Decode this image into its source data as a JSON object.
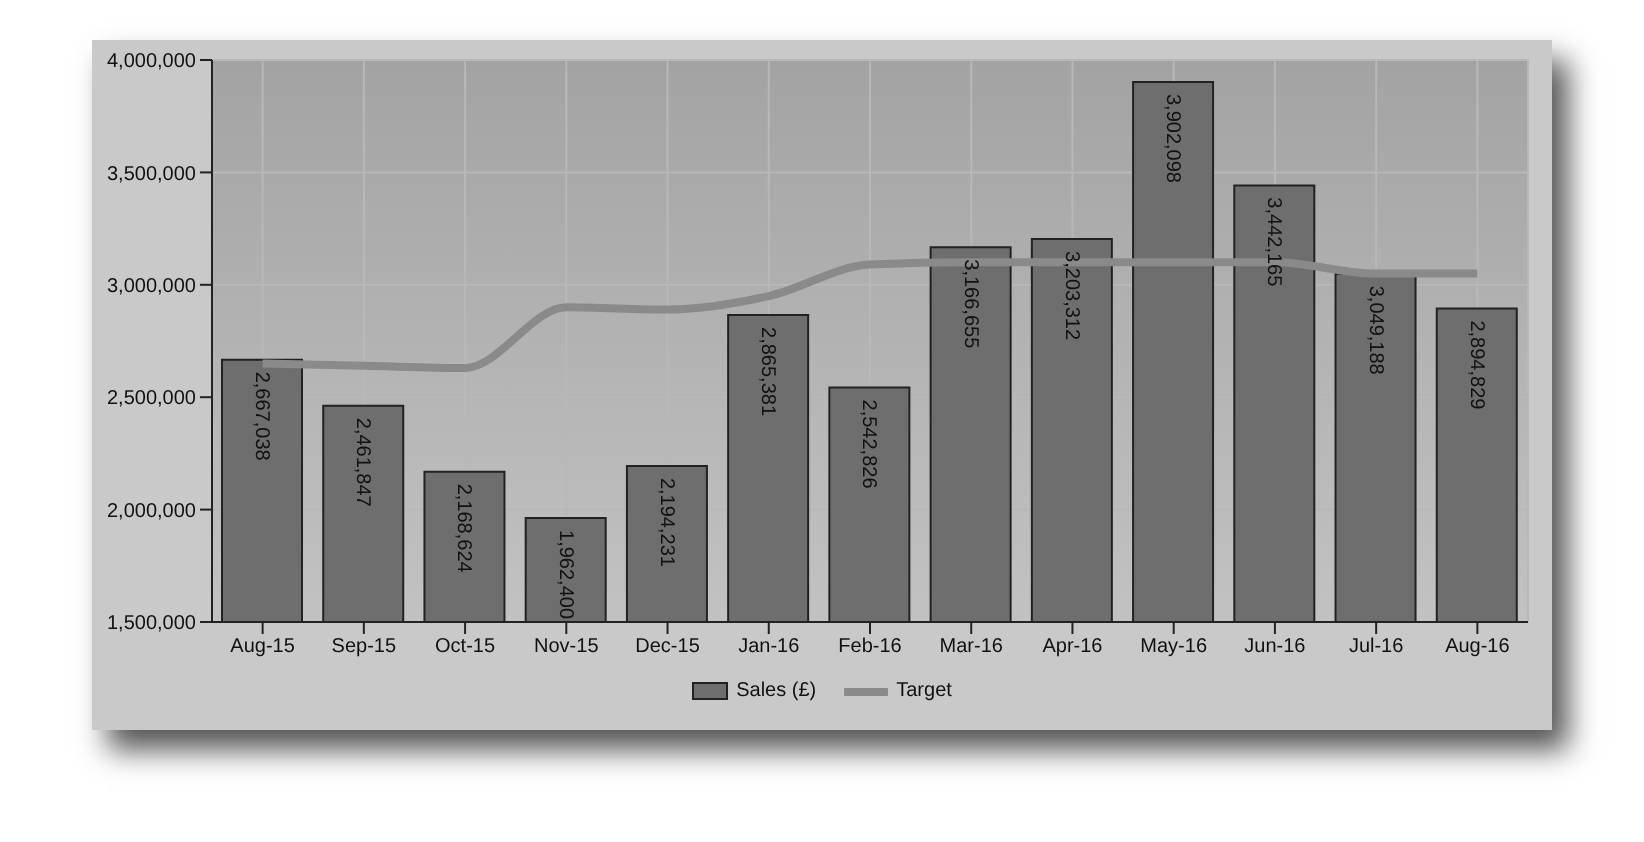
{
  "chart_data": {
    "type": "bar",
    "categories": [
      "Aug-15",
      "Sep-15",
      "Oct-15",
      "Nov-15",
      "Dec-15",
      "Jan-16",
      "Feb-16",
      "Mar-16",
      "Apr-16",
      "May-16",
      "Jun-16",
      "Jul-16",
      "Aug-16"
    ],
    "series": [
      {
        "name": "Sales (£)",
        "color": "#6e6e6e",
        "values": [
          2667038,
          2461847,
          2168624,
          1962400,
          2194231,
          2865381,
          2542826,
          3166655,
          3203312,
          3902098,
          3442165,
          3049188,
          2894829
        ],
        "value_labels": [
          "2,667,038",
          "2,461,847",
          "2,168,624",
          "1,962,400",
          "2,194,231",
          "2,865,381",
          "2,542,826",
          "3,166,655",
          "3,203,312",
          "3,902,098",
          "3,442,165",
          "3,049,188",
          "2,894,829"
        ]
      },
      {
        "name": "Target",
        "type": "line",
        "color": "#8a8a8a",
        "values": [
          2650000,
          2640000,
          2630000,
          2900000,
          2890000,
          2950000,
          3090000,
          3100000,
          3100000,
          3100000,
          3100000,
          3050000,
          3050000
        ]
      }
    ],
    "ylim": [
      1500000,
      4000000
    ],
    "yticks": [
      {
        "value": 1500000,
        "label": "1,500,000"
      },
      {
        "value": 2000000,
        "label": "2,000,000"
      },
      {
        "value": 2500000,
        "label": "2,500,000"
      },
      {
        "value": 3000000,
        "label": "3,000,000"
      },
      {
        "value": 3500000,
        "label": "3,500,000"
      },
      {
        "value": 4000000,
        "label": "4,000,000"
      }
    ],
    "grid": true,
    "legend": "bottom",
    "marker": "none"
  }
}
